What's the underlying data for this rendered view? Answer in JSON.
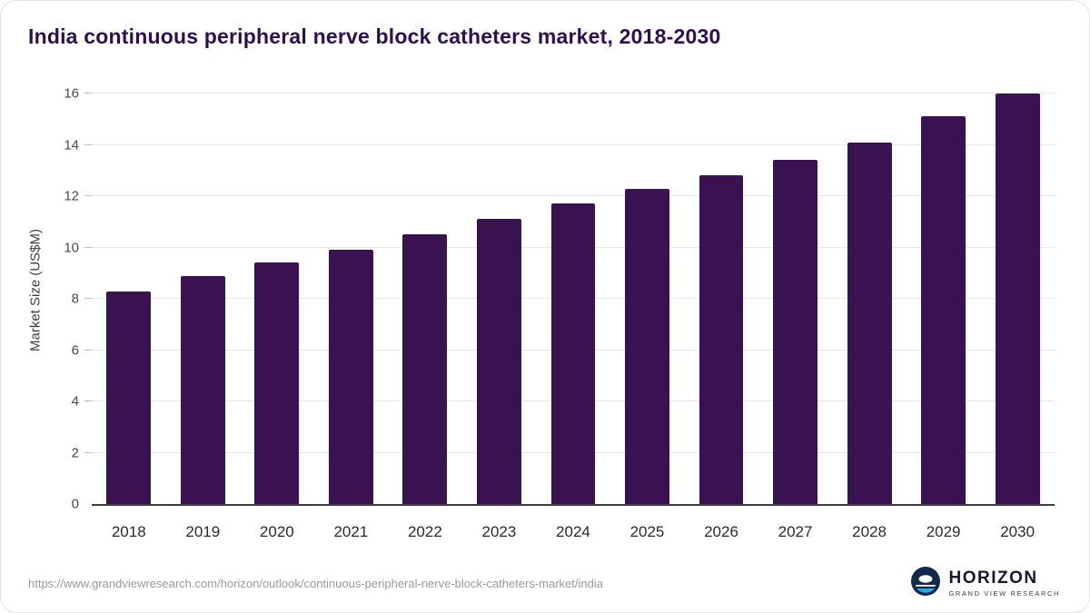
{
  "header": {
    "title": "India continuous peripheral nerve block catheters market, 2018-2030"
  },
  "chart_data": {
    "type": "bar",
    "categories": [
      "2018",
      "2019",
      "2020",
      "2021",
      "2022",
      "2023",
      "2024",
      "2025",
      "2026",
      "2027",
      "2028",
      "2029",
      "2030"
    ],
    "values": [
      8.3,
      8.9,
      9.4,
      9.9,
      10.5,
      11.1,
      11.7,
      12.3,
      12.8,
      13.4,
      14.1,
      15.1,
      16.0
    ],
    "title": "India continuous peripheral nerve block catheters market, 2018-2030",
    "xlabel": "",
    "ylabel": "Market Size (US$M)",
    "ylim": [
      0,
      16
    ],
    "yticks": [
      0,
      2,
      4,
      6,
      8,
      10,
      12,
      14,
      16
    ],
    "grid": true,
    "legend": "none",
    "bar_color": "#3a1252"
  },
  "footer": {
    "source_url": "https://www.grandviewresearch.com/horizon/outlook/continuous-peripheral-nerve-block-catheters-market/india",
    "logo_title": "HORIZON",
    "logo_subtitle": "GRAND VIEW RESEARCH"
  },
  "colors": {
    "bar": "#3a1252",
    "title": "#2e1052",
    "logo_circle": "#12294b"
  }
}
